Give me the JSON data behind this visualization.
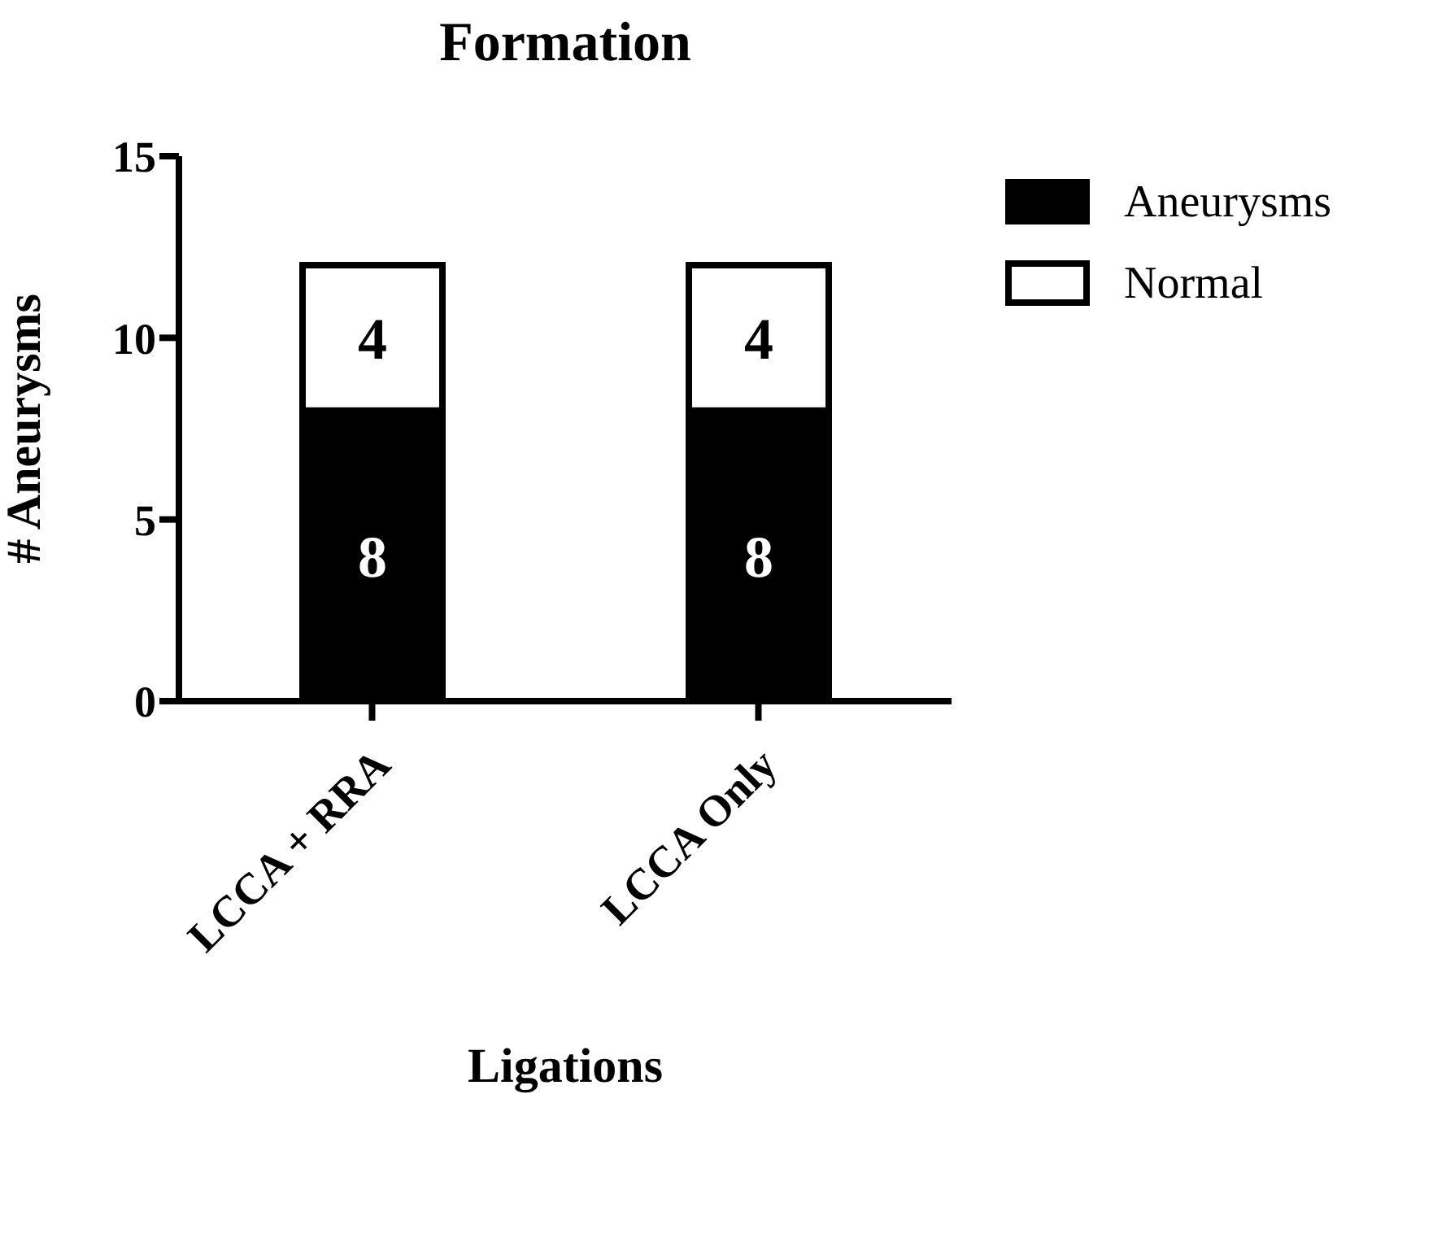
{
  "chart_data": {
    "type": "bar",
    "title": "Formation",
    "xlabel": "Ligations",
    "ylabel": "# Aneurysms",
    "categories": [
      "LCCA + RRA",
      "LCCA Only"
    ],
    "stacked": true,
    "series": [
      {
        "name": "Aneurysms",
        "color": "#000000",
        "values": [
          8,
          8
        ]
      },
      {
        "name": "Normal",
        "color": "#ffffff",
        "values": [
          4,
          4
        ]
      }
    ],
    "ylim": [
      0,
      15
    ],
    "yticks": [
      0,
      5,
      10,
      15
    ],
    "data_labels": true,
    "legend": "top right",
    "grid": false
  }
}
